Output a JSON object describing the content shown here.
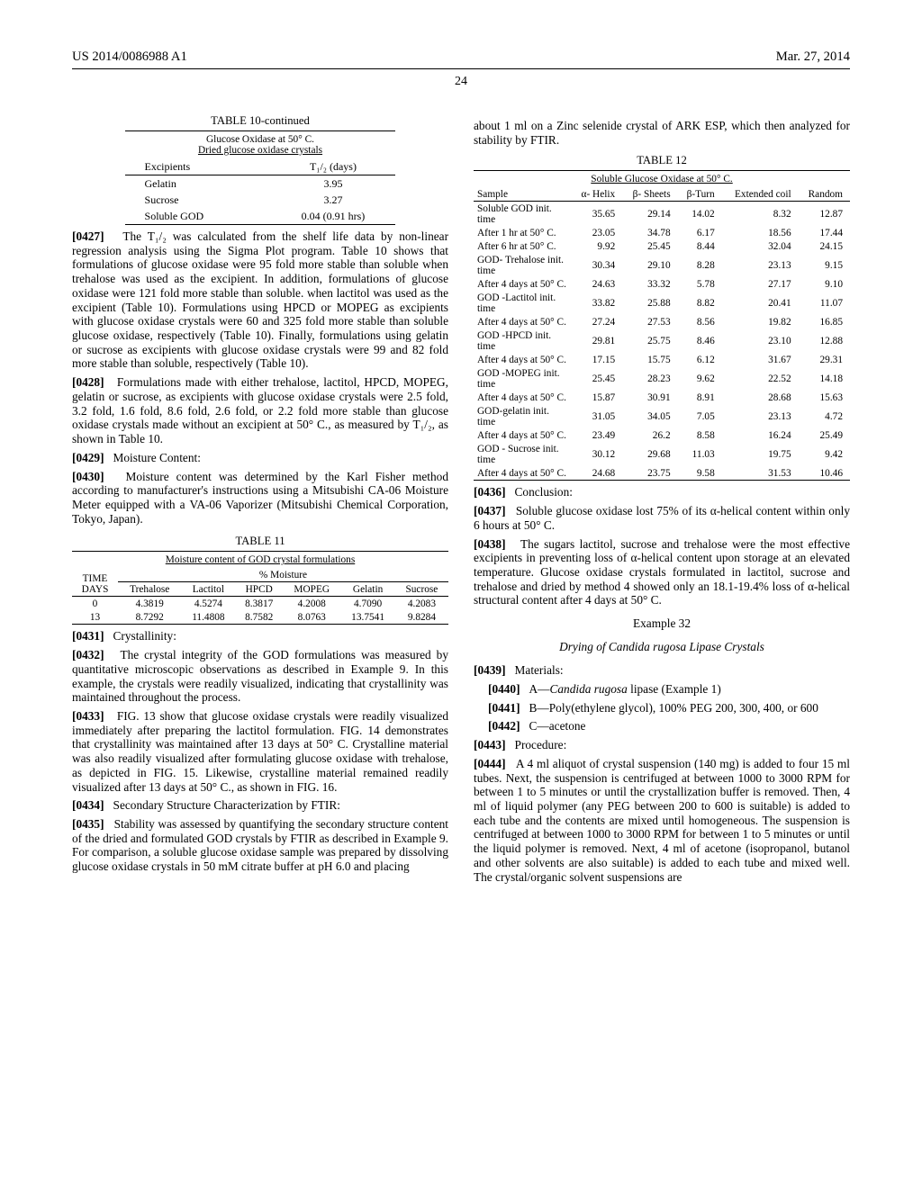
{
  "header": {
    "left": "US 2014/0086988 A1",
    "right": "Mar. 27, 2014"
  },
  "page_number": "24",
  "table10": {
    "title": "TABLE 10-continued",
    "subtitle1": "Glucose Oxidase at 50° C.",
    "subtitle2": "Dried glucose oxidase crystals",
    "col_headers": [
      "Excipients",
      "T₁/₂ (days)"
    ],
    "rows": [
      [
        "Gelatin",
        "3.95"
      ],
      [
        "Sucrose",
        "3.27"
      ],
      [
        "Soluble GOD",
        "0.04 (0.91 hrs)"
      ]
    ]
  },
  "para0427": {
    "num": "[0427]",
    "text": "The T₁/₂ was calculated from the shelf life data by non-linear regression analysis using the Sigma Plot program. Table 10 shows that formulations of glucose oxidase were 95 fold more stable than soluble when trehalose was used as the excipient. In addition, formulations of glucose oxidase were 121 fold more stable than soluble. when lactitol was used as the excipient (Table 10). Formulations using HPCD or MOPEG as excipients with glucose oxidase crystals were 60 and 325 fold more stable than soluble glucose oxidase, respectively (Table 10). Finally, formulations using gelatin or sucrose as excipients with glucose oxidase crystals were 99 and 82 fold more stable than soluble, respectively (Table 10)."
  },
  "para0428": {
    "num": "[0428]",
    "text": "Formulations made with either trehalose, lactitol, HPCD, MOPEG, gelatin or sucrose, as excipients with glucose oxidase crystals were 2.5 fold, 3.2 fold, 1.6 fold, 8.6 fold, 2.6 fold, or 2.2 fold more stable than glucose oxidase crystals made without an excipient at 50° C., as measured by T₁/₂, as shown in Table 10."
  },
  "para0429": {
    "num": "[0429]",
    "text": "Moisture Content:"
  },
  "para0430": {
    "num": "[0430]",
    "text": "Moisture content was determined by the Karl Fisher method according to manufacturer's instructions using a Mitsubishi CA-06 Moisture Meter equipped with a VA-06 Vaporizer (Mitsubishi Chemical Corporation, Tokyo, Japan)."
  },
  "table11": {
    "title": "TABLE 11",
    "subtitle": "Moisture content of GOD crystal formulations",
    "spanning_header": "% Moisture",
    "col_headers": [
      "TIME DAYS",
      "Trehalose",
      "Lactitol",
      "HPCD",
      "MOPEG",
      "Gelatin",
      "Sucrose"
    ],
    "time_label_top": "TIME",
    "time_label_bot": "DAYS",
    "rows": [
      [
        "0",
        "4.3819",
        "4.5274",
        "8.3817",
        "4.2008",
        "4.7090",
        "4.2083"
      ],
      [
        "13",
        "8.7292",
        "11.4808",
        "8.7582",
        "8.0763",
        "13.7541",
        "9.8284"
      ]
    ]
  },
  "para0431": {
    "num": "[0431]",
    "text": "Crystallinity:"
  },
  "para0432": {
    "num": "[0432]",
    "text": "The crystal integrity of the GOD formulations was measured by quantitative microscopic observations as described in Example 9. In this example, the crystals were readily visualized, indicating that crystallinity was maintained throughout the process."
  },
  "para0433": {
    "num": "[0433]",
    "text": "FIG. 13 show that glucose oxidase crystals were readily visualized immediately after preparing the lactitol formulation. FIG. 14 demonstrates that crystallinity was maintained after 13 days at 50° C. Crystalline material was also readily visualized after formulating glucose oxidase with trehalose, as depicted in FIG. 15. Likewise, crystalline material remained readily visualized after 13 days at 50° C., as shown in FIG. 16."
  },
  "para0434": {
    "num": "[0434]",
    "text": "Secondary Structure Characterization by FTIR:"
  },
  "para0435": {
    "num": "[0435]",
    "text": "Stability was assessed by quantifying the secondary structure content of the dried and formulated GOD crystals by FTIR as described in Example 9. For comparison, a soluble glucose oxidase sample was prepared by dissolving glucose oxidase crystals in 50 mM citrate buffer at pH 6.0 and placing"
  },
  "col2_top": "about 1 ml on a Zinc selenide crystal of ARK ESP, which then analyzed for stability by FTIR.",
  "table12": {
    "title": "TABLE 12",
    "subtitle": "Soluble Glucose Oxidase at 50° C.",
    "col_headers": [
      "Sample",
      "α- Helix",
      "β- Sheets",
      "β-Turn",
      "Extended coil",
      "Random"
    ],
    "rows": [
      [
        "Soluble GOD init. time",
        "35.65",
        "29.14",
        "14.02",
        "8.32",
        "12.87"
      ],
      [
        "After 1 hr at 50° C.",
        "23.05",
        "34.78",
        "6.17",
        "18.56",
        "17.44"
      ],
      [
        "After 6 hr at 50° C.",
        "9.92",
        "25.45",
        "8.44",
        "32.04",
        "24.15"
      ],
      [
        "GOD- Trehalose init. time",
        "30.34",
        "29.10",
        "8.28",
        "23.13",
        "9.15"
      ],
      [
        "After 4 days at 50° C.",
        "24.63",
        "33.32",
        "5.78",
        "27.17",
        "9.10"
      ],
      [
        "GOD -Lactitol init. time",
        "33.82",
        "25.88",
        "8.82",
        "20.41",
        "11.07"
      ],
      [
        "After 4 days at 50° C.",
        "27.24",
        "27.53",
        "8.56",
        "19.82",
        "16.85"
      ],
      [
        "GOD -HPCD init. time",
        "29.81",
        "25.75",
        "8.46",
        "23.10",
        "12.88"
      ],
      [
        "After 4 days at 50° C.",
        "17.15",
        "15.75",
        "6.12",
        "31.67",
        "29.31"
      ],
      [
        "GOD -MOPEG init. time",
        "25.45",
        "28.23",
        "9.62",
        "22.52",
        "14.18"
      ],
      [
        "After 4 days at 50° C.",
        "15.87",
        "30.91",
        "8.91",
        "28.68",
        "15.63"
      ],
      [
        "GOD-gelatin init. time",
        "31.05",
        "34.05",
        "7.05",
        "23.13",
        "4.72"
      ],
      [
        "After 4 days at 50° C.",
        "23.49",
        "26.2",
        "8.58",
        "16.24",
        "25.49"
      ],
      [
        "GOD - Sucrose init. time",
        "30.12",
        "29.68",
        "11.03",
        "19.75",
        "9.42"
      ],
      [
        "After 4 days at 50° C.",
        "24.68",
        "23.75",
        "9.58",
        "31.53",
        "10.46"
      ]
    ]
  },
  "para0436": {
    "num": "[0436]",
    "text": "Conclusion:"
  },
  "para0437": {
    "num": "[0437]",
    "text": "Soluble glucose oxidase lost 75% of its α-helical content within only 6 hours at 50° C."
  },
  "para0438": {
    "num": "[0438]",
    "text": "The sugars lactitol, sucrose and trehalose were the most effective excipients in preventing loss of α-helical content upon storage at an elevated temperature. Glucose oxidase crystals formulated in lactitol, sucrose and trehalose and dried by method 4 showed only an 18.1-19.4% loss of α-helical structural content after 4 days at 50° C."
  },
  "example32": {
    "title": "Example 32",
    "sub": "Drying of Candida rugosa Lipase Crystals"
  },
  "para0439": {
    "num": "[0439]",
    "text": "Materials:"
  },
  "para0440": {
    "num": "[0440]",
    "text": "A—Candida rugosa lipase (Example 1)"
  },
  "para0441": {
    "num": "[0441]",
    "text": "B—Poly(ethylene glycol), 100% PEG 200, 300, 400, or 600"
  },
  "para0442": {
    "num": "[0442]",
    "text": "C—acetone"
  },
  "para0443": {
    "num": "[0443]",
    "text": "Procedure:"
  },
  "para0444": {
    "num": "[0444]",
    "text": "A 4 ml aliquot of crystal suspension (140 mg) is added to four 15 ml tubes. Next, the suspension is centrifuged at between 1000 to 3000 RPM for between 1 to 5 minutes or until the crystallization buffer is removed. Then, 4 ml of liquid polymer (any PEG between 200 to 600 is suitable) is added to each tube and the contents are mixed until homogeneous. The suspension is centrifuged at between 1000 to 3000 RPM for between 1 to 5 minutes or until the liquid polymer is removed. Next, 4 ml of acetone (isopropanol, butanol and other solvents are also suitable) is added to each tube and mixed well. The crystal/organic solvent suspensions are"
  }
}
